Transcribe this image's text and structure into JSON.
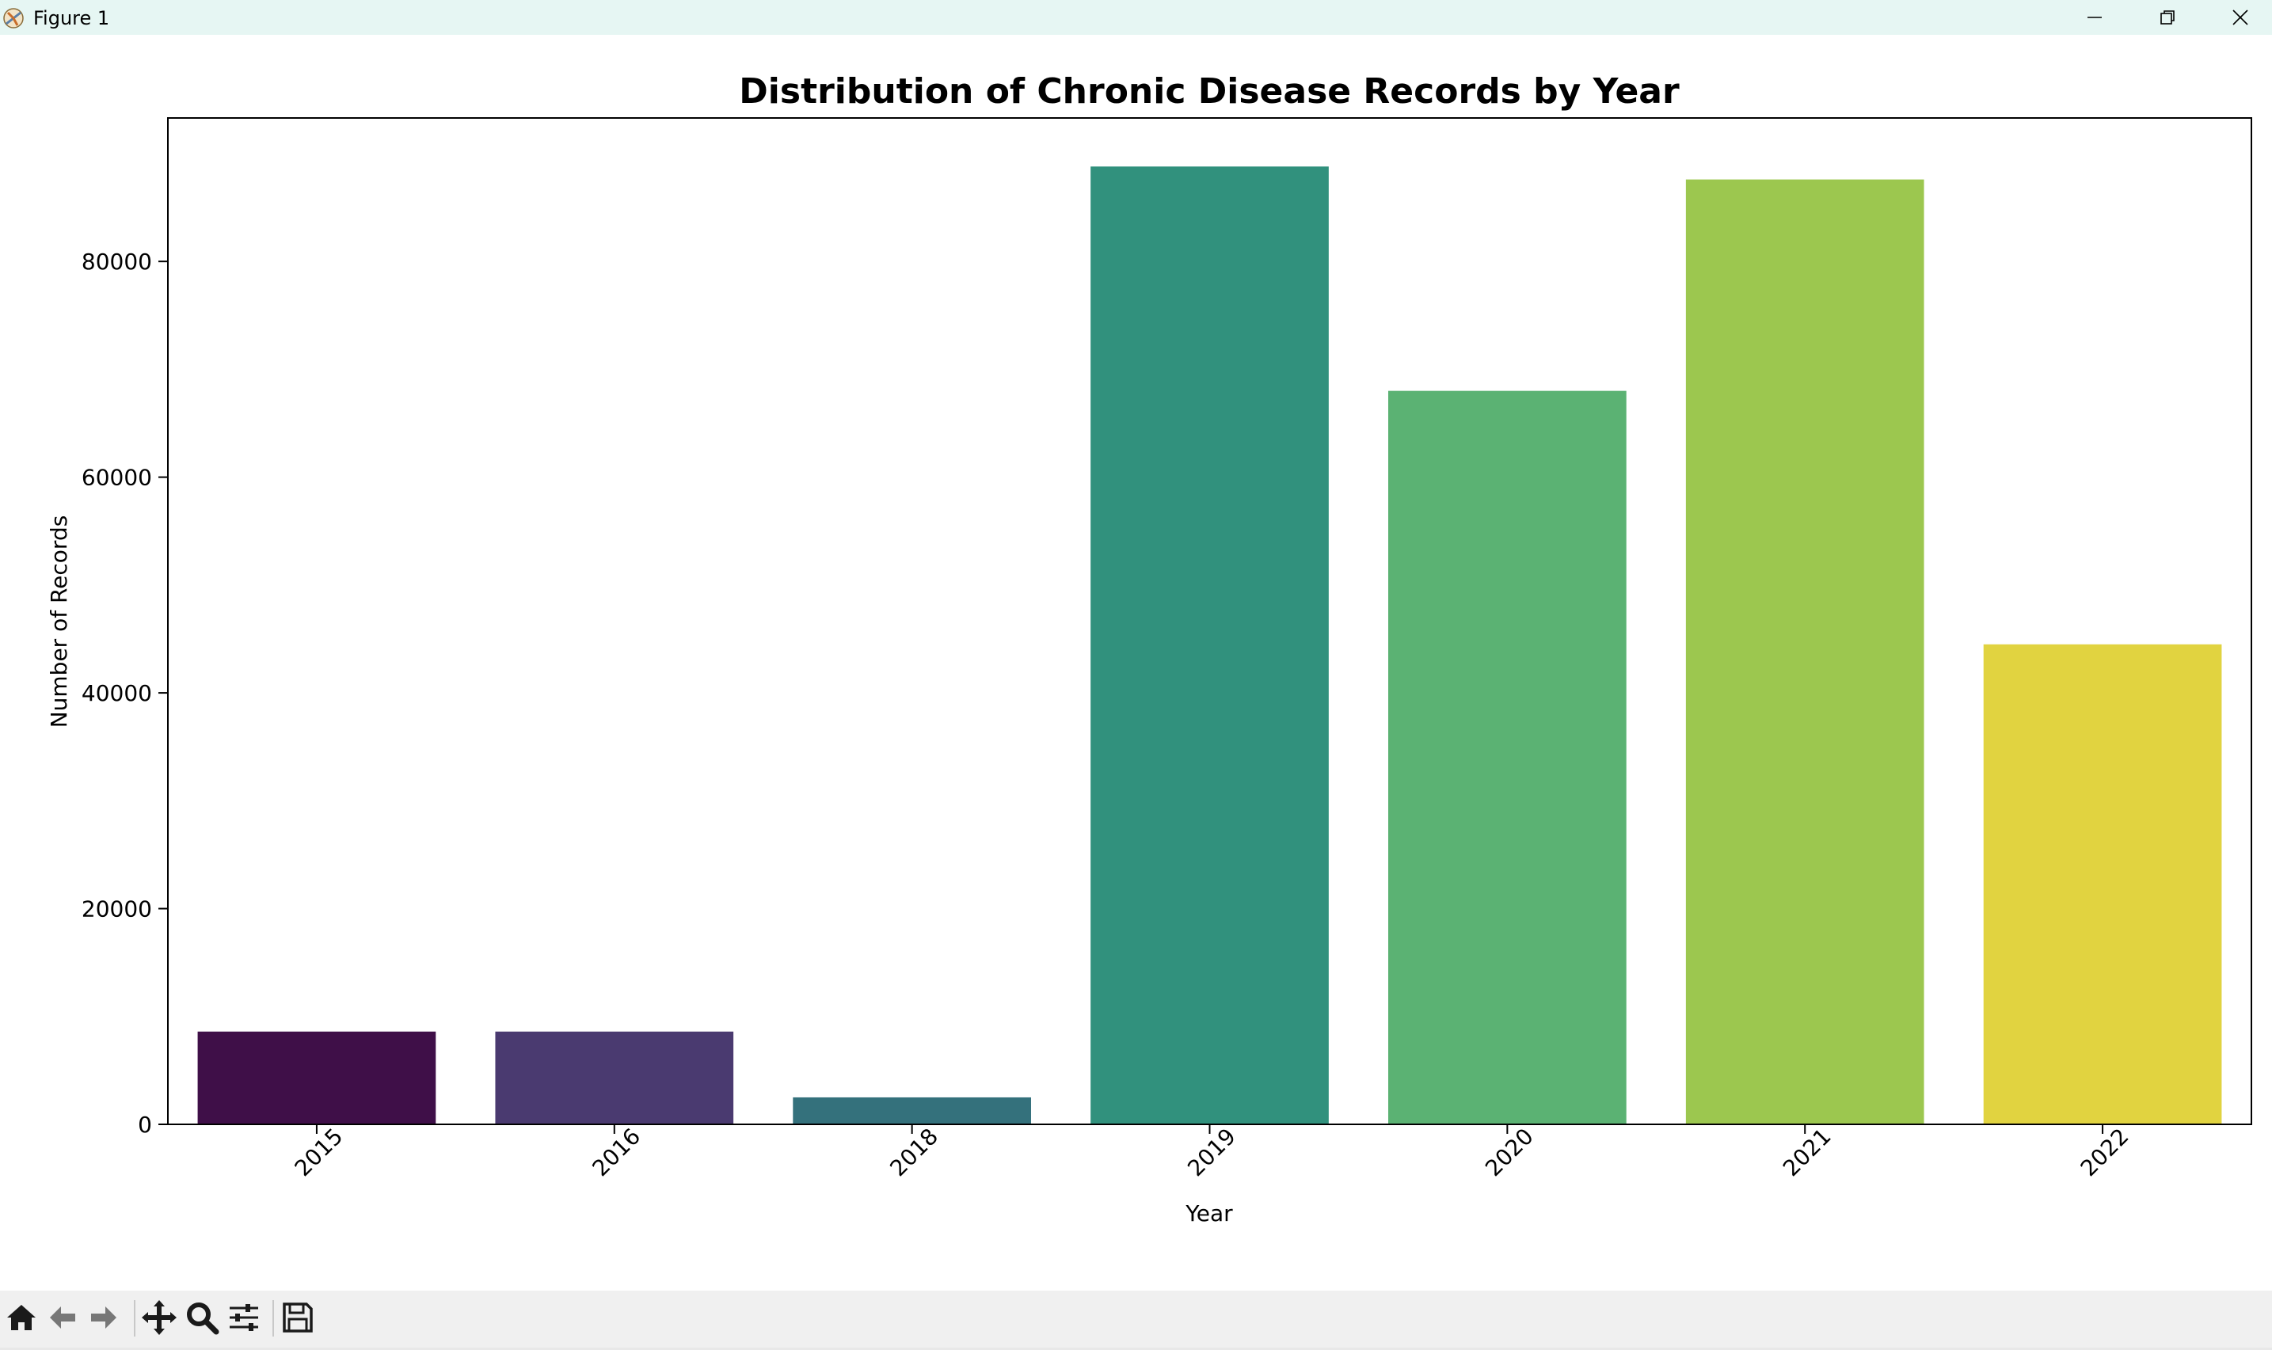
{
  "window": {
    "title": "Figure 1",
    "controls": [
      "minimize-icon",
      "restore-icon",
      "close-icon"
    ]
  },
  "toolbar": {
    "buttons": [
      "home-icon",
      "back-icon",
      "forward-icon",
      "pan-icon",
      "zoom-icon",
      "configure-subplots-icon",
      "save-icon"
    ]
  },
  "chart_data": {
    "type": "bar",
    "title": "Distribution of Chronic Disease Records by Year",
    "xlabel": "Year",
    "ylabel": "Number of Records",
    "categories": [
      "2015",
      "2016",
      "2018",
      "2019",
      "2020",
      "2021",
      "2022"
    ],
    "values": [
      8600,
      8600,
      2500,
      88800,
      68000,
      87600,
      44500
    ],
    "colors": [
      "#3f0f48",
      "#4a3a70",
      "#34717c",
      "#31917d",
      "#5bb273",
      "#9cc74f",
      "#e1d340"
    ],
    "ylim": [
      0,
      93300
    ],
    "yticks": [
      0,
      20000,
      40000,
      60000,
      80000
    ],
    "ytick_labels": [
      "0",
      "20000",
      "40000",
      "60000",
      "80000"
    ],
    "xtick_rotation": 45,
    "grid": false,
    "legend": "none"
  }
}
